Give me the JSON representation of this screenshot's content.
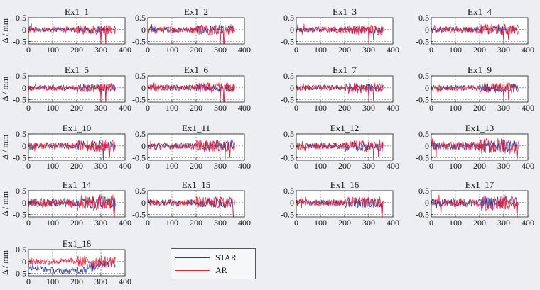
{
  "chart_data": {
    "type": "line",
    "ylabel": "Δ / mm",
    "xlim": [
      0,
      400
    ],
    "ylim": [
      -0.6,
      0.5
    ],
    "xticks": [
      "0",
      "100",
      "200",
      "300",
      "400"
    ],
    "yticks": [
      "0.5",
      "0",
      "-0.5"
    ],
    "grid": true,
    "legend": {
      "position": "bottom",
      "entries": [
        {
          "name": "STAR",
          "color": "#2a3a9e"
        },
        {
          "name": "AR",
          "color": "#e8233a"
        }
      ]
    },
    "series_colors": {
      "STAR": "#2a3a9e",
      "AR": "#e8233a"
    },
    "note": "Each panel: two noisy residual time series (STAR, AR) over epochs 0-360; values approximated.",
    "panels": [
      {
        "title": "Ex1_1",
        "spikes": [
          [
            300,
            -0.6
          ],
          [
            320,
            -0.6
          ]
        ],
        "amp": 0.12
      },
      {
        "title": "Ex1_2",
        "spikes": [
          [
            300,
            -0.6
          ],
          [
            315,
            -0.6
          ]
        ],
        "amp": 0.14
      },
      {
        "title": "Ex1_3",
        "spikes": [
          [
            300,
            -0.5
          ],
          [
            320,
            -0.45
          ]
        ],
        "amp": 0.13
      },
      {
        "title": "Ex1_4",
        "spikes": [
          [
            300,
            -0.6
          ],
          [
            320,
            -0.45
          ]
        ],
        "amp": 0.14
      },
      {
        "title": "Ex1_5",
        "spikes": [
          [
            300,
            -0.6
          ],
          [
            320,
            -0.6
          ]
        ],
        "amp": 0.12
      },
      {
        "title": "Ex1_6",
        "spikes": [
          [
            300,
            -0.6
          ],
          [
            315,
            -0.6
          ]
        ],
        "amp": 0.13
      },
      {
        "title": "Ex1_7",
        "spikes": [
          [
            300,
            -0.5
          ],
          [
            320,
            -0.55
          ]
        ],
        "amp": 0.13
      },
      {
        "title": "Ex1_9",
        "spikes": [
          [
            300,
            -0.5
          ],
          [
            320,
            -0.5
          ]
        ],
        "amp": 0.13
      },
      {
        "title": "Ex1_10",
        "spikes": [
          [
            310,
            -0.6
          ],
          [
            335,
            -0.5
          ]
        ],
        "amp": 0.15
      },
      {
        "title": "Ex1_11",
        "spikes": [
          [
            320,
            -0.6
          ],
          [
            340,
            -0.5
          ]
        ],
        "amp": 0.15
      },
      {
        "title": "Ex1_12",
        "spikes": [
          [
            320,
            -0.6
          ],
          [
            340,
            -0.45
          ]
        ],
        "amp": 0.15
      },
      {
        "title": "Ex1_13",
        "spikes": [
          [
            20,
            -0.5
          ],
          [
            355,
            -0.55
          ]
        ],
        "amp": 0.2
      },
      {
        "title": "Ex1_14",
        "spikes": [
          [
            355,
            -0.6
          ]
        ],
        "amp": 0.2
      },
      {
        "title": "Ex1_15",
        "spikes": [
          [
            355,
            -0.6
          ]
        ],
        "amp": 0.15
      },
      {
        "title": "Ex1_16",
        "spikes": [
          [
            355,
            -0.6
          ]
        ],
        "amp": 0.15
      },
      {
        "title": "Ex1_17",
        "spikes": [
          [
            40,
            -0.5
          ],
          [
            355,
            -0.6
          ]
        ],
        "amp": 0.2
      },
      {
        "title": "Ex1_18",
        "spikes": [],
        "amp": 0.15,
        "star_offset": true
      }
    ]
  }
}
